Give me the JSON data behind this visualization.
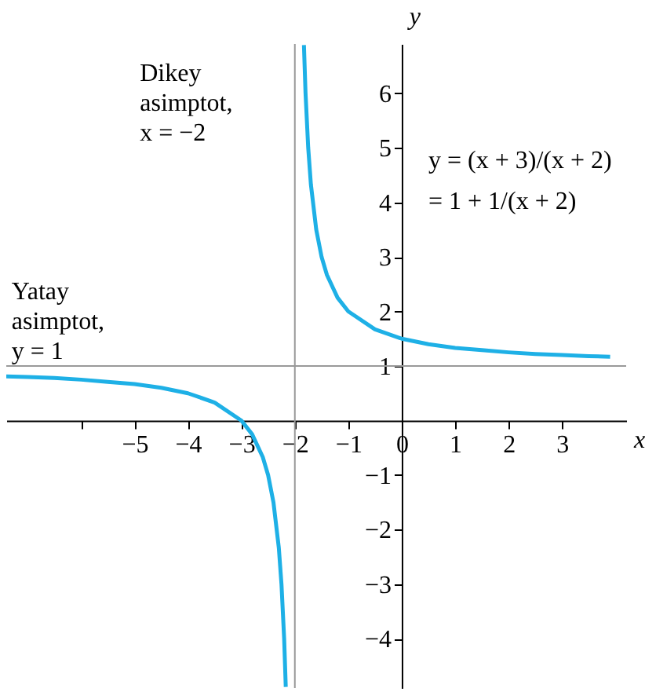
{
  "chart_data": {
    "type": "line",
    "xlabel": "x",
    "ylabel": "y",
    "xlim": [
      -7.4,
      4.2
    ],
    "ylim": [
      -4.9,
      6.9
    ],
    "xticks": [
      {
        "value": -6,
        "label": null
      },
      -5,
      -4,
      -3,
      -2,
      -1,
      0,
      1,
      2,
      3
    ],
    "yticks": [
      -4,
      -3,
      -2,
      -1,
      1,
      2,
      3,
      4,
      5,
      6
    ],
    "grid": false,
    "marker": "none",
    "line_style": "solid",
    "series": [
      {
        "color": "#1eb0e6",
        "x": [
          -7.4,
          -7,
          -6.5,
          -6,
          -5.5,
          -5,
          -4.5,
          -4,
          -3.5,
          -3,
          -2.8,
          -2.6,
          -2.5,
          -2.4,
          -2.3,
          -2.25,
          -2.2,
          -2.17
        ],
        "values": [
          0.81,
          0.8,
          0.78,
          0.75,
          0.71,
          0.67,
          0.6,
          0.5,
          0.33,
          0,
          -0.25,
          -0.67,
          -1,
          -1.5,
          -2.33,
          -3,
          -4,
          -4.88
        ]
      },
      {
        "color": "#1eb0e6",
        "x": [
          -1.83,
          -1.8,
          -1.75,
          -1.7,
          -1.6,
          -1.5,
          -1.4,
          -1.2,
          -1,
          -0.5,
          0,
          0.5,
          1,
          1.5,
          2,
          2.5,
          3,
          3.5,
          3.9
        ],
        "values": [
          6.88,
          6,
          5,
          4.33,
          3.5,
          3,
          2.67,
          2.25,
          2,
          1.67,
          1.5,
          1.4,
          1.33,
          1.29,
          1.25,
          1.22,
          1.2,
          1.18,
          1.17
        ]
      }
    ],
    "ref_lines": [
      {
        "axis": "x",
        "value": -2,
        "label": "Dikey\nasimptot,\nx = −2",
        "color": "#999999"
      },
      {
        "axis": "y",
        "value": 1,
        "label": "Yatay\nasimptot,\ny = 1",
        "color": "#999999"
      }
    ],
    "annotations": [
      "y = (x + 3)/(x + 2)\n   = 1 + 1/(x + 2)"
    ]
  }
}
